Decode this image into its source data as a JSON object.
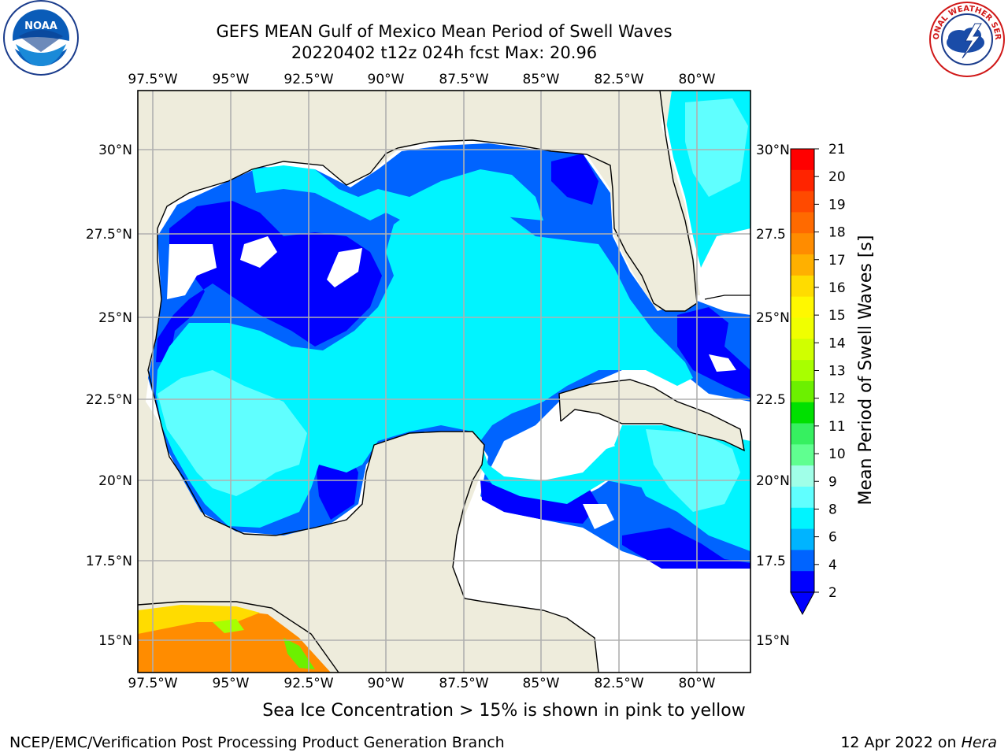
{
  "header": {
    "title_line1": "GEFS MEAN Gulf of Mexico Mean Period of Swell Waves",
    "title_line2": "20220402 t12z 024h fcst   Max: 20.96"
  },
  "logos": {
    "left": {
      "icon": "noaa-logo",
      "text": "NOAA"
    },
    "right": {
      "icon": "nws-logo",
      "text": "NATIONAL WEATHER SERVICE"
    }
  },
  "map": {
    "lon_ticks_top": [
      "97.5°W",
      "95°W",
      "92.5°W",
      "90°W",
      "87.5°W",
      "85°W",
      "82.5°W",
      "80°W"
    ],
    "lon_ticks_bottom": [
      "97.5°W",
      "95°W",
      "92.5°W",
      "90°W",
      "87.5°W",
      "85°W",
      "82.5°W",
      "80°W"
    ],
    "lat_ticks_left": [
      "30°N",
      "27.5°N",
      "25°N",
      "22.5°N",
      "20°N",
      "17.5°N",
      "15°N"
    ],
    "lat_ticks_right": [
      "30°N",
      "27.5",
      "25°N",
      "22.5",
      "20°N",
      "17.5",
      "15°N"
    ],
    "colors": {
      "land": "#eeecdc",
      "grid": "#b0b0b0"
    }
  },
  "colorbar": {
    "label": "Mean Period of Swell Waves [s]",
    "ticks": [
      "21",
      "20",
      "19",
      "18",
      "17",
      "16",
      "15",
      "14",
      "13",
      "12",
      "11",
      "10",
      "9",
      "8",
      "6",
      "4",
      "2"
    ],
    "colors": [
      "#ff0000",
      "#ff2400",
      "#ff4a00",
      "#ff6a00",
      "#ff8c00",
      "#ffb000",
      "#ffdc00",
      "#fff800",
      "#f0ff00",
      "#d0ff00",
      "#a8ff00",
      "#6cf000",
      "#00e000",
      "#36f060",
      "#60ff90",
      "#a0ffe8",
      "#60ffff",
      "#00f4ff",
      "#00b4ff",
      "#0064ff",
      "#0000ff"
    ]
  },
  "footer": {
    "subtitle": "Sea Ice Concentration > 15% is shown in pink to yellow",
    "credit_left": "NCEP/EMC/Verification Post Processing Product Generation Branch",
    "credit_right_prefix": "12 Apr 2022 on ",
    "credit_right_host": "Hera"
  }
}
